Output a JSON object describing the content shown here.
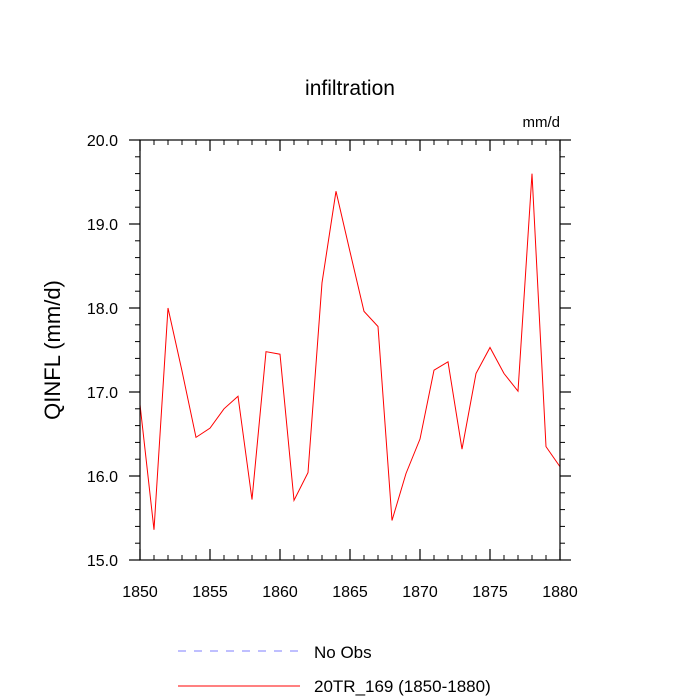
{
  "chart_data": {
    "type": "line",
    "title": "infiltration",
    "units": "mm/d",
    "xlabel": "",
    "ylabel": "QINFL  (mm/d)",
    "xlim": [
      1850,
      1880
    ],
    "ylim": [
      15.0,
      20.0
    ],
    "x_ticks": [
      1850,
      1855,
      1860,
      1865,
      1870,
      1875,
      1880
    ],
    "y_ticks": [
      15.0,
      16.0,
      17.0,
      18.0,
      19.0,
      20.0
    ],
    "y_tick_labels": [
      "15.0",
      "16.0",
      "17.0",
      "18.0",
      "19.0",
      "20.0"
    ],
    "grid": false,
    "legend_position": "bottom",
    "series": [
      {
        "name": "No Obs",
        "color": "#7f7fff",
        "style": "dashed",
        "x": [],
        "values": []
      },
      {
        "name": "20TR_169 (1850-1880)",
        "color": "#ff0000",
        "style": "solid",
        "x": [
          1850,
          1851,
          1852,
          1853,
          1854,
          1855,
          1856,
          1857,
          1858,
          1859,
          1860,
          1861,
          1862,
          1863,
          1864,
          1865,
          1866,
          1867,
          1868,
          1869,
          1870,
          1871,
          1872,
          1873,
          1874,
          1875,
          1876,
          1877,
          1878,
          1879,
          1880
        ],
        "values": [
          16.85,
          15.36,
          18.0,
          17.25,
          16.46,
          16.57,
          16.8,
          16.95,
          15.72,
          17.48,
          17.45,
          15.71,
          16.04,
          18.3,
          19.39,
          18.67,
          17.96,
          17.78,
          15.47,
          16.03,
          16.44,
          17.26,
          17.36,
          16.32,
          17.22,
          17.53,
          17.22,
          17.01,
          19.6,
          16.35,
          16.11
        ]
      }
    ]
  }
}
